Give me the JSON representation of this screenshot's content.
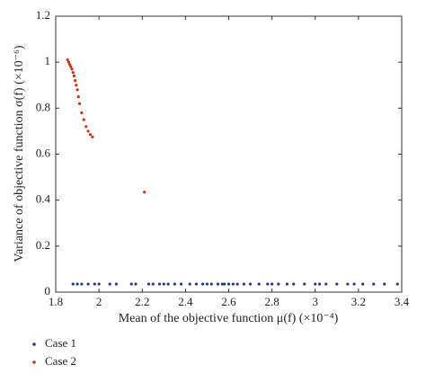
{
  "chart_data": {
    "type": "scatter",
    "xlabel": "Mean of the objective function μ(f) (×10⁻⁴)",
    "ylabel": "Variance of objective function σ(f) (×10⁻⁶)",
    "xlim": [
      1.8,
      3.4
    ],
    "xticks": [
      1.8,
      2,
      2.2,
      2.4,
      2.6,
      2.8,
      3,
      3.2,
      3.4
    ],
    "ylim": [
      0,
      1.2
    ],
    "yticks": [
      0,
      0.2,
      0.4,
      0.6,
      0.8,
      1,
      1.2
    ],
    "legend": "below",
    "series": [
      {
        "name": "Case 1",
        "color": "#2b2f8f",
        "x": [
          1.88,
          1.9,
          1.92,
          1.95,
          1.98,
          2.0,
          2.05,
          2.08,
          2.15,
          2.17,
          2.23,
          2.25,
          2.28,
          2.3,
          2.32,
          2.35,
          2.38,
          2.42,
          2.45,
          2.48,
          2.5,
          2.52,
          2.55,
          2.57,
          2.58,
          2.6,
          2.62,
          2.64,
          2.67,
          2.7,
          2.74,
          2.78,
          2.8,
          2.83,
          2.87,
          2.9,
          2.95,
          3.0,
          3.02,
          3.05,
          3.1,
          3.15,
          3.18,
          3.22,
          3.27,
          3.32,
          3.38
        ],
        "values": [
          0.035,
          0.035,
          0.035,
          0.035,
          0.035,
          0.035,
          0.035,
          0.035,
          0.035,
          0.035,
          0.035,
          0.035,
          0.035,
          0.035,
          0.035,
          0.035,
          0.035,
          0.035,
          0.035,
          0.035,
          0.035,
          0.035,
          0.035,
          0.035,
          0.035,
          0.035,
          0.035,
          0.035,
          0.035,
          0.035,
          0.035,
          0.035,
          0.035,
          0.035,
          0.035,
          0.035,
          0.035,
          0.035,
          0.035,
          0.035,
          0.035,
          0.035,
          0.035,
          0.035,
          0.035,
          0.035,
          0.035
        ]
      },
      {
        "name": "Case 2",
        "color": "#cc3311",
        "x": [
          1.855,
          1.86,
          1.865,
          1.87,
          1.875,
          1.88,
          1.885,
          1.89,
          1.895,
          1.9,
          1.905,
          1.91,
          1.92,
          1.93,
          1.94,
          1.95,
          1.96,
          1.97,
          2.21
        ],
        "values": [
          1.01,
          1.0,
          0.99,
          0.98,
          0.97,
          0.955,
          0.94,
          0.92,
          0.9,
          0.88,
          0.85,
          0.82,
          0.78,
          0.75,
          0.72,
          0.7,
          0.685,
          0.675,
          0.435
        ]
      }
    ]
  }
}
